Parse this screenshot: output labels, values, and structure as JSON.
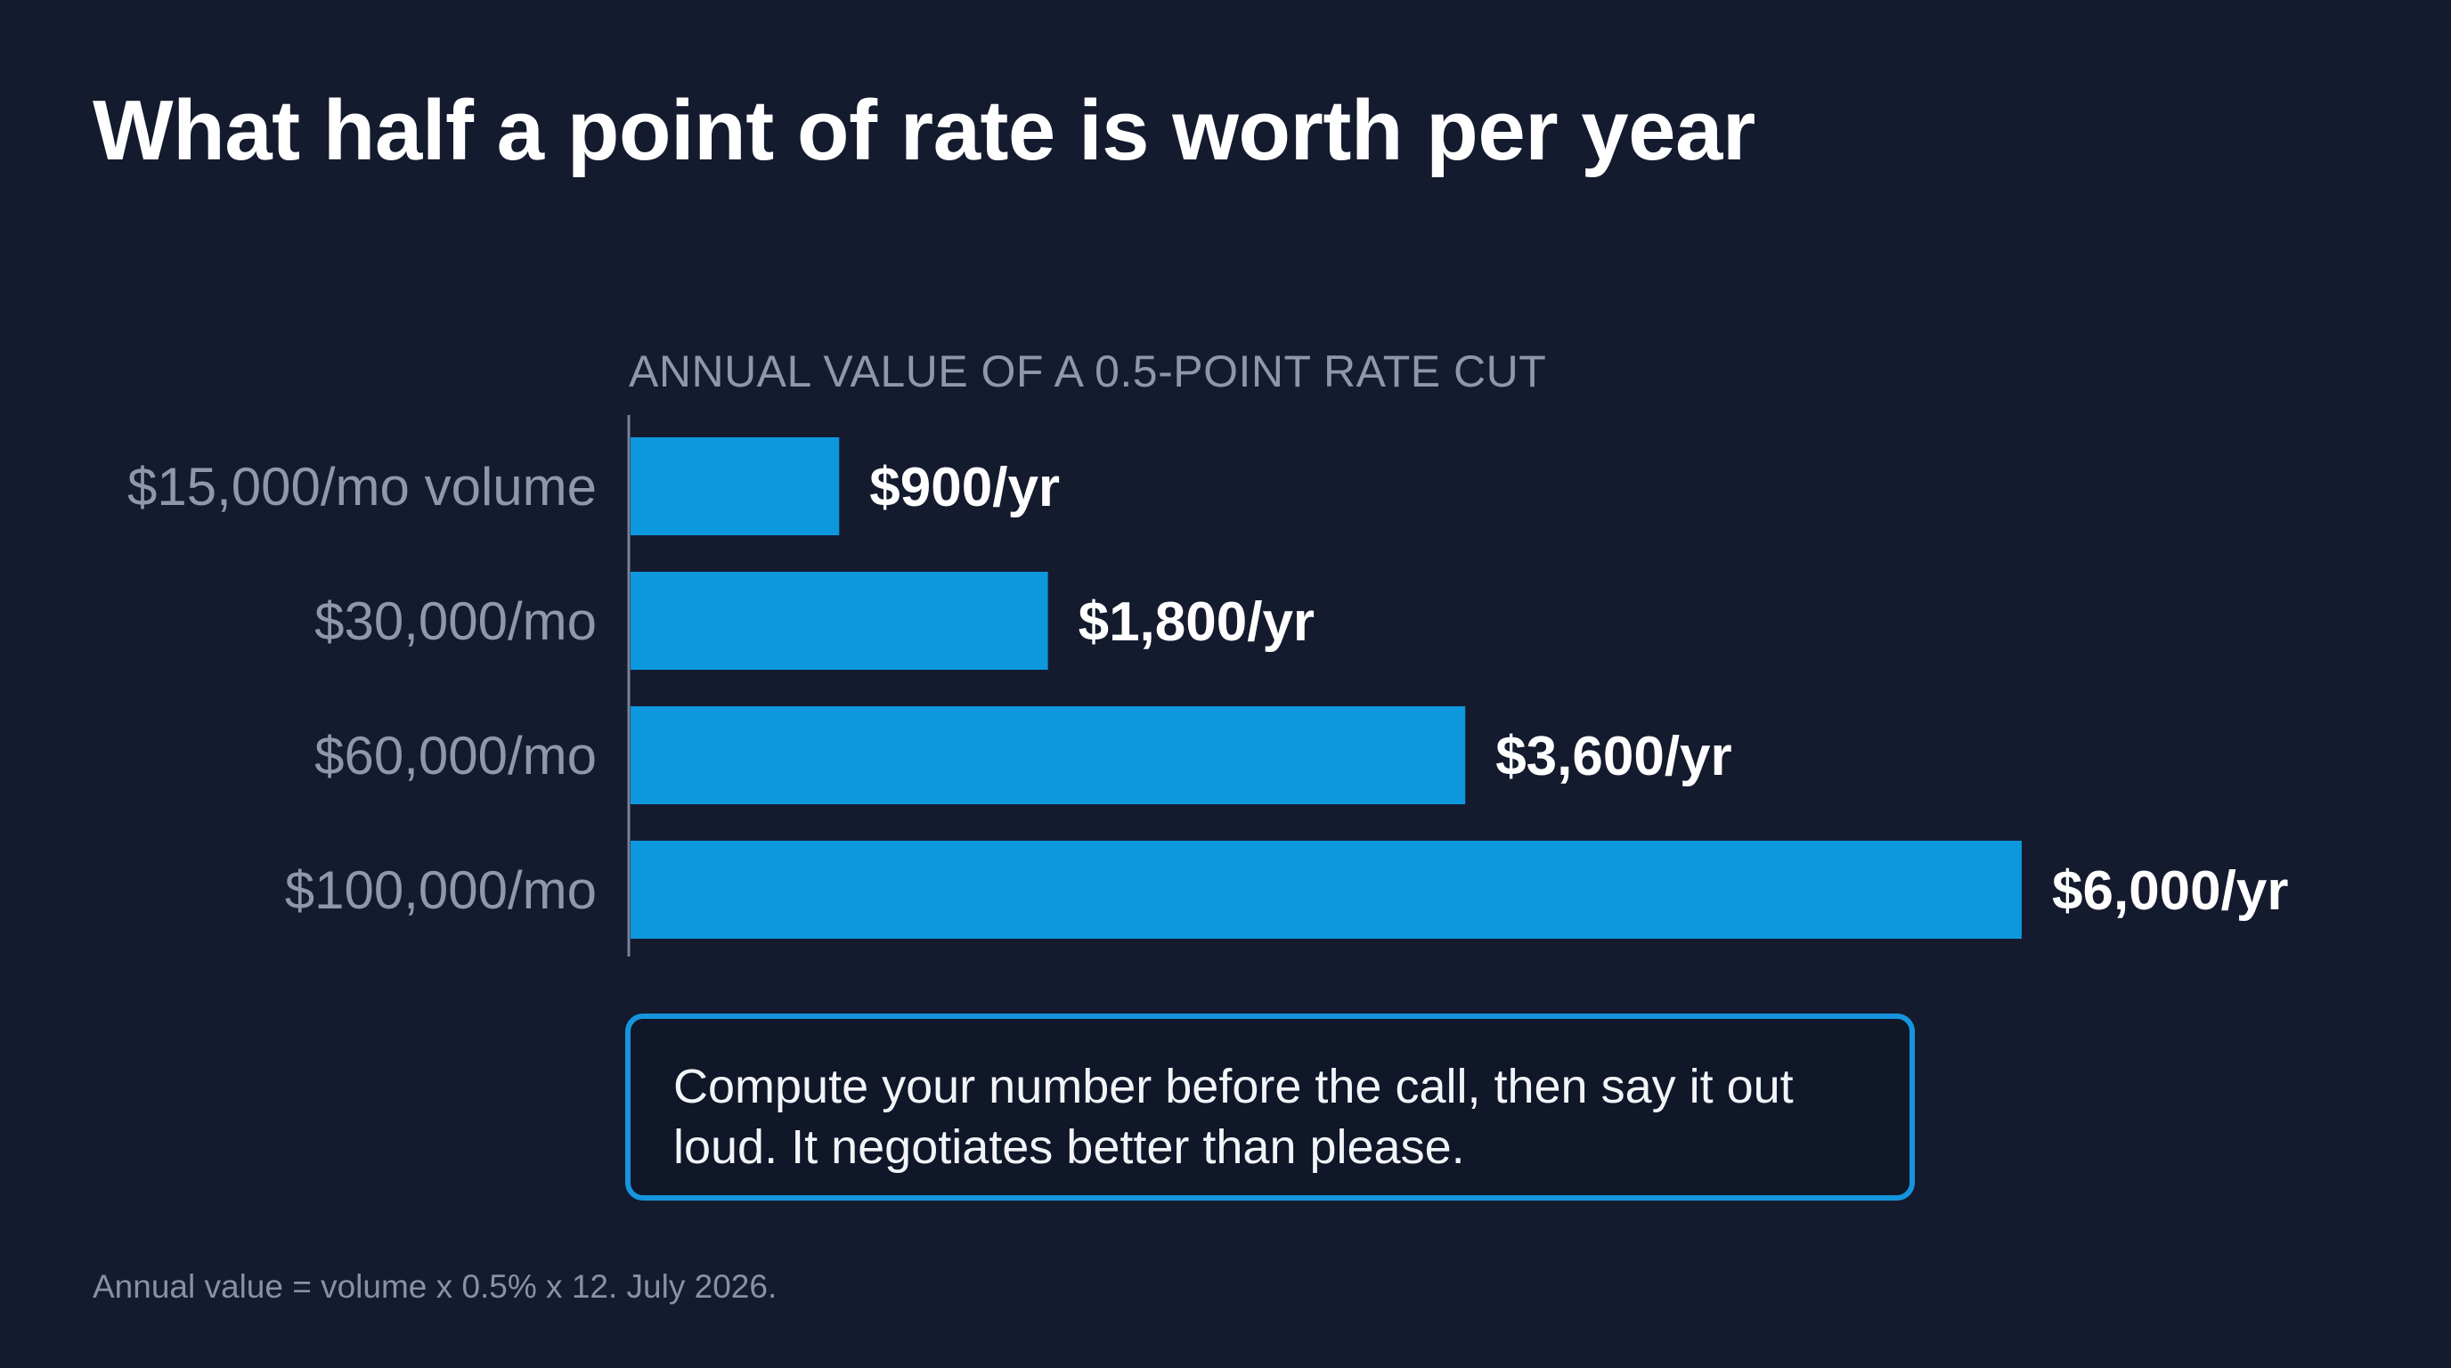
{
  "title": "What half a point of rate is worth per year",
  "chart_data": {
    "type": "bar",
    "orientation": "horizontal",
    "title": "ANNUAL VALUE OF A 0.5-POINT RATE CUT",
    "categories": [
      "$15,000/mo volume",
      "$30,000/mo",
      "$60,000/mo",
      "$100,000/mo"
    ],
    "values": [
      900,
      1800,
      3600,
      6000
    ],
    "value_labels": [
      "$900/yr",
      "$1,800/yr",
      "$3,600/yr",
      "$6,000/yr"
    ],
    "xlim": [
      0,
      6000
    ],
    "grid": false,
    "legend": "none",
    "bar_color": "#0d98de"
  },
  "callout": {
    "text": "Compute your number before the call, then say it out loud. It negotiates better than please."
  },
  "footnote": "Annual value = volume x 0.5% x 12. July 2026."
}
